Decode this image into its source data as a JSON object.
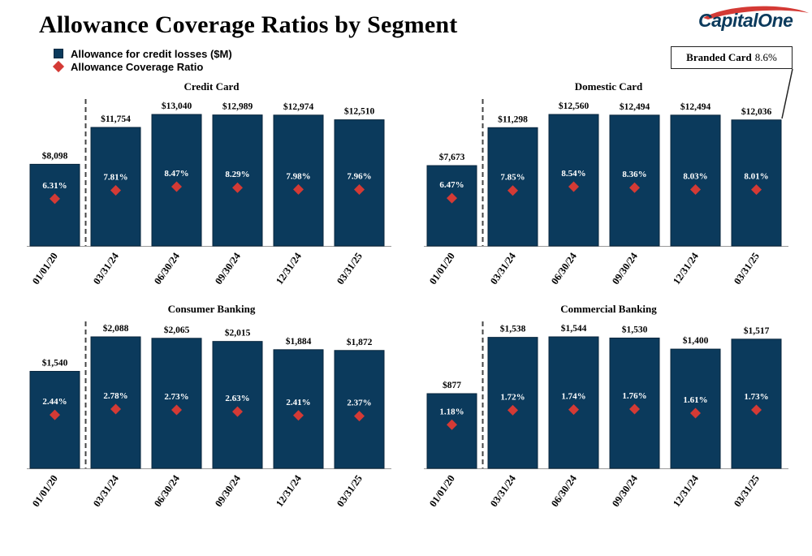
{
  "title": "Allowance Coverage Ratios by Segment",
  "legend": {
    "bar_label": "Allowance for credit losses ($M)",
    "marker_label": "Allowance Coverage Ratio"
  },
  "logo": {
    "text": "CapitalOne"
  },
  "callout": {
    "label": "Branded Card",
    "value": "8.6%"
  },
  "colors": {
    "bar": "#0b3a5c",
    "marker": "#d43a35",
    "divider": "#444444"
  },
  "chart_data": [
    {
      "type": "bar",
      "title": "Credit Card",
      "categories": [
        "01/01/20",
        "03/31/24",
        "06/30/24",
        "09/30/24",
        "12/31/24",
        "03/31/25"
      ],
      "series": [
        {
          "name": "Allowance for credit losses ($M)",
          "values": [
            8098,
            11754,
            13040,
            12989,
            12974,
            12510
          ],
          "labels": [
            "$8,098",
            "$11,754",
            "$13,040",
            "$12,989",
            "$12,974",
            "$12,510"
          ]
        },
        {
          "name": "Allowance Coverage Ratio",
          "values": [
            6.31,
            7.81,
            8.47,
            8.29,
            7.98,
            7.96
          ],
          "labels": [
            "6.31%",
            "7.81%",
            "8.47%",
            "8.29%",
            "7.98%",
            "7.96%"
          ]
        }
      ]
    },
    {
      "type": "bar",
      "title": "Domestic Card",
      "categories": [
        "01/01/20",
        "03/31/24",
        "06/30/24",
        "09/30/24",
        "12/31/24",
        "03/31/25"
      ],
      "series": [
        {
          "name": "Allowance for credit losses ($M)",
          "values": [
            7673,
            11298,
            12560,
            12494,
            12494,
            12036
          ],
          "labels": [
            "$7,673",
            "$11,298",
            "$12,560",
            "$12,494",
            "$12,494",
            "$12,036"
          ]
        },
        {
          "name": "Allowance Coverage Ratio",
          "values": [
            6.47,
            7.85,
            8.54,
            8.36,
            8.03,
            8.01
          ],
          "labels": [
            "6.47%",
            "7.85%",
            "8.54%",
            "8.36%",
            "8.03%",
            "8.01%"
          ]
        }
      ]
    },
    {
      "type": "bar",
      "title": "Consumer Banking",
      "categories": [
        "01/01/20",
        "03/31/24",
        "06/30/24",
        "09/30/24",
        "12/31/24",
        "03/31/25"
      ],
      "series": [
        {
          "name": "Allowance for credit losses ($M)",
          "values": [
            1540,
            2088,
            2065,
            2015,
            1884,
            1872
          ],
          "labels": [
            "$1,540",
            "$2,088",
            "$2,065",
            "$2,015",
            "$1,884",
            "$1,872"
          ]
        },
        {
          "name": "Allowance Coverage Ratio",
          "values": [
            2.44,
            2.78,
            2.73,
            2.63,
            2.41,
            2.37
          ],
          "labels": [
            "2.44%",
            "2.78%",
            "2.73%",
            "2.63%",
            "2.41%",
            "2.37%"
          ]
        }
      ]
    },
    {
      "type": "bar",
      "title": "Commercial Banking",
      "categories": [
        "01/01/20",
        "03/31/24",
        "06/30/24",
        "09/30/24",
        "12/31/24",
        "03/31/25"
      ],
      "series": [
        {
          "name": "Allowance for credit losses ($M)",
          "values": [
            877,
            1538,
            1544,
            1530,
            1400,
            1517
          ],
          "labels": [
            "$877",
            "$1,538",
            "$1,544",
            "$1,530",
            "$1,400",
            "$1,517"
          ]
        },
        {
          "name": "Allowance Coverage Ratio",
          "values": [
            1.18,
            1.72,
            1.74,
            1.76,
            1.61,
            1.73
          ],
          "labels": [
            "1.18%",
            "1.72%",
            "1.74%",
            "1.76%",
            "1.61%",
            "1.73%"
          ]
        }
      ]
    }
  ]
}
